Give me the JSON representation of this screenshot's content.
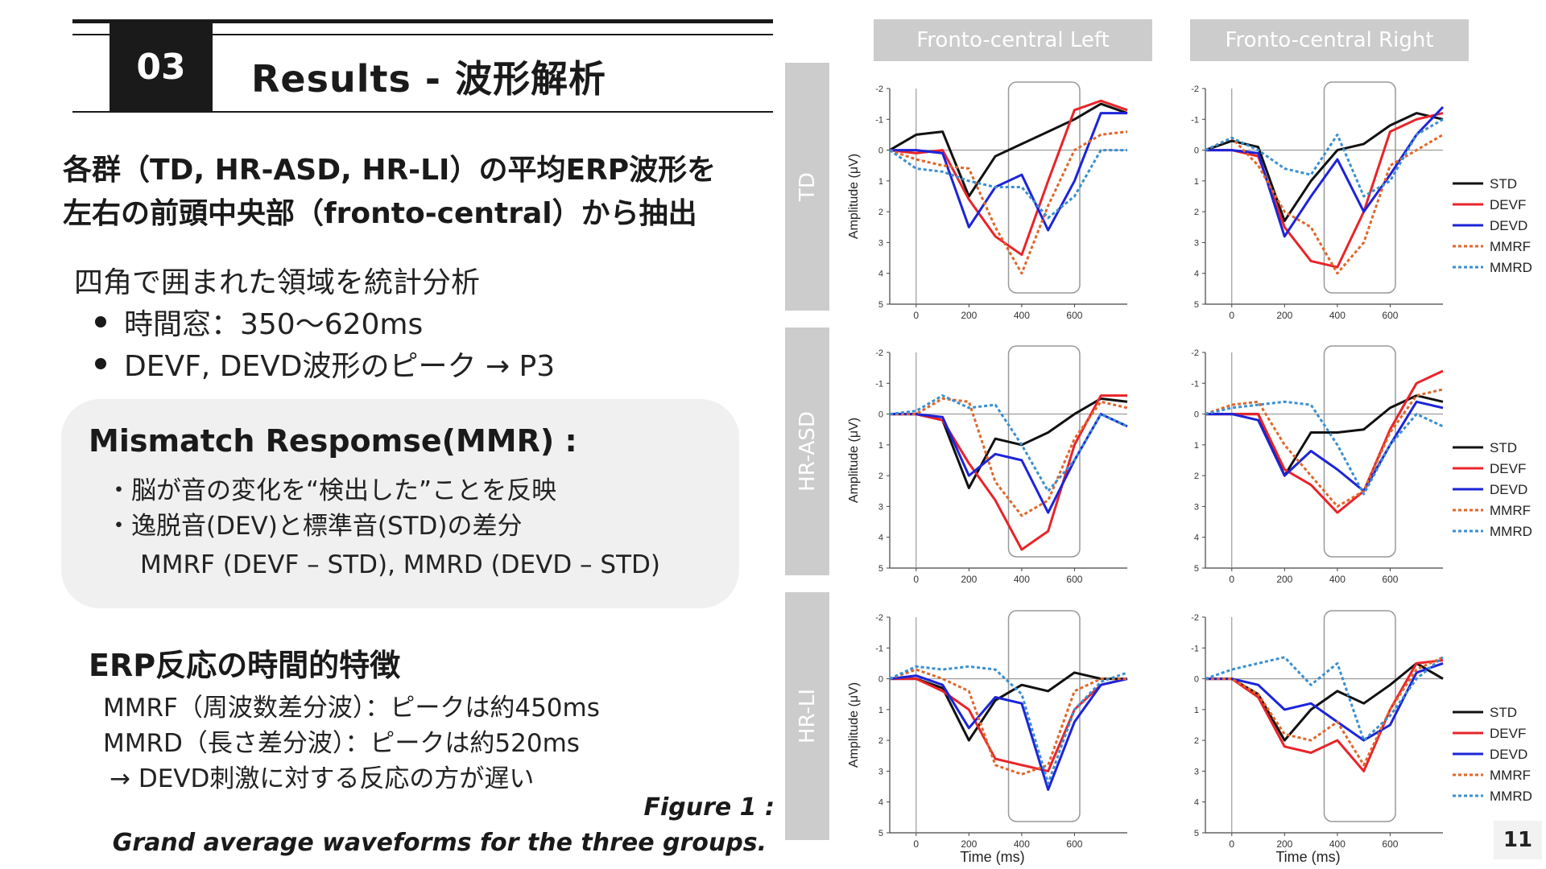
{
  "header": {
    "section_number": "03",
    "title": "Results - 波形解析"
  },
  "lead": [
    "各群（TD, HR-ASD, HR-LI）の平均ERP波形を",
    "左右の前頭中央部（fronto-central）から抽出"
  ],
  "analysis": {
    "intro": "四角で囲まれた領域を統計分析",
    "bullets": [
      "時間窓：350～620ms",
      "DEVF, DEVD波形のピーク → P3"
    ]
  },
  "mmr": {
    "title": "Mismatch Respomse(MMR) :",
    "lines": [
      "・脳が音の変化を“検出した”ことを反映",
      "・逸脱音(DEV)と標準音(STD)の差分"
    ],
    "formula": "MMRF (DEVF – STD), MMRD (DEVD – STD)"
  },
  "erp": {
    "title": "ERP反応の時間的特徴",
    "lines": [
      "MMRF（周波数差分波）：ピークは約450ms",
      "MMRD（長さ差分波）：ピークは約520ms",
      "→ DEVD刺激に対する反応の方が遅い"
    ]
  },
  "caption": {
    "line1": "Figure 1 :",
    "line2": "Grand average waveforms for the three groups."
  },
  "figure": {
    "columns": [
      "Fronto-central Left",
      "Fronto-central Right"
    ],
    "rows": [
      "TD",
      "HR-ASD",
      "HR-LI"
    ],
    "y_label": "Amplitude (μV)",
    "x_label": "Time (ms)",
    "y_ticks": [
      "-2",
      "-1",
      "0",
      "1",
      "2",
      "3",
      "4",
      "5"
    ],
    "x_ticks": [
      "0",
      "200",
      "400",
      "600"
    ],
    "legend": [
      "STD",
      "DEVF",
      "DEVD",
      "MMRF",
      "MMRD"
    ],
    "colors": {
      "STD": "#111111",
      "DEVF": "#e8242a",
      "DEVD": "#1c24d8",
      "MMRF": "#e0662a",
      "MMRD": "#3a8fd0"
    }
  },
  "chart_data": {
    "type": "line",
    "title": "Grand average waveforms for the three groups",
    "xlabel": "Time (ms)",
    "ylabel": "Amplitude (μV)",
    "xlim": [
      -100,
      800
    ],
    "ylim": [
      -2,
      5
    ],
    "y_inverted": true,
    "analysis_window_ms": [
      350,
      620
    ],
    "x": [
      -100,
      0,
      100,
      200,
      300,
      400,
      500,
      600,
      700,
      800
    ],
    "panels": [
      {
        "group": "TD",
        "side": "Fronto-central Left",
        "series": [
          {
            "name": "STD",
            "values": [
              0,
              -0.5,
              -0.6,
              1.5,
              0.2,
              -0.2,
              -0.6,
              -1.0,
              -1.5,
              -1.2
            ]
          },
          {
            "name": "DEVF",
            "values": [
              0,
              0.1,
              0.0,
              1.6,
              2.8,
              3.4,
              1.0,
              -1.3,
              -1.6,
              -1.3
            ]
          },
          {
            "name": "DEVD",
            "values": [
              0,
              0.0,
              0.1,
              2.5,
              1.2,
              0.8,
              2.6,
              1.0,
              -1.2,
              -1.2
            ]
          },
          {
            "name": "MMRF",
            "values": [
              0,
              0.3,
              0.5,
              0.6,
              2.5,
              4.0,
              1.8,
              0.0,
              -0.5,
              -0.6
            ]
          },
          {
            "name": "MMRD",
            "values": [
              0,
              0.6,
              0.7,
              1.0,
              1.2,
              1.2,
              2.2,
              1.5,
              0.0,
              0.0
            ]
          }
        ]
      },
      {
        "group": "TD",
        "side": "Fronto-central Right",
        "series": [
          {
            "name": "STD",
            "values": [
              0,
              -0.3,
              -0.1,
              2.3,
              1.0,
              0.0,
              -0.2,
              -0.8,
              -1.2,
              -1.0
            ]
          },
          {
            "name": "DEVF",
            "values": [
              0,
              0.0,
              0.2,
              2.5,
              3.6,
              3.8,
              2.0,
              -0.6,
              -1.0,
              -1.2
            ]
          },
          {
            "name": "DEVD",
            "values": [
              0,
              0.0,
              0.1,
              2.8,
              1.5,
              0.3,
              2.0,
              0.8,
              -0.5,
              -1.4
            ]
          },
          {
            "name": "MMRF",
            "values": [
              0,
              -0.4,
              0.5,
              2.0,
              2.5,
              4.0,
              3.0,
              0.5,
              0.0,
              -0.5
            ]
          },
          {
            "name": "MMRD",
            "values": [
              0,
              -0.4,
              0.0,
              0.6,
              0.8,
              -0.5,
              1.5,
              1.0,
              -0.5,
              -1.0
            ]
          }
        ]
      },
      {
        "group": "HR-ASD",
        "side": "Fronto-central Left",
        "series": [
          {
            "name": "STD",
            "values": [
              0,
              0.0,
              0.2,
              2.4,
              0.8,
              1.0,
              0.6,
              0.0,
              -0.5,
              -0.4
            ]
          },
          {
            "name": "DEVF",
            "values": [
              0,
              0.0,
              0.2,
              1.6,
              2.8,
              4.4,
              3.8,
              1.0,
              -0.6,
              -0.6
            ]
          },
          {
            "name": "DEVD",
            "values": [
              0,
              0.0,
              0.1,
              2.0,
              1.3,
              1.5,
              3.2,
              1.5,
              0.0,
              0.4
            ]
          },
          {
            "name": "MMRF",
            "values": [
              0,
              0.0,
              -0.5,
              -0.4,
              2.2,
              3.3,
              2.8,
              0.8,
              -0.4,
              -0.2
            ]
          },
          {
            "name": "MMRD",
            "values": [
              0,
              -0.1,
              -0.6,
              -0.2,
              -0.3,
              1.0,
              2.5,
              1.5,
              0.0,
              0.4
            ]
          }
        ]
      },
      {
        "group": "HR-ASD",
        "side": "Fronto-central Right",
        "series": [
          {
            "name": "STD",
            "values": [
              0,
              0.0,
              0.0,
              2.0,
              0.6,
              0.6,
              0.5,
              -0.2,
              -0.6,
              -0.4
            ]
          },
          {
            "name": "DEVF",
            "values": [
              0,
              0.0,
              0.0,
              1.8,
              2.3,
              3.2,
              2.5,
              0.5,
              -1.0,
              -1.4
            ]
          },
          {
            "name": "DEVD",
            "values": [
              0,
              0.0,
              0.2,
              2.0,
              1.2,
              1.8,
              2.5,
              1.0,
              -0.4,
              -0.2
            ]
          },
          {
            "name": "MMRF",
            "values": [
              0,
              -0.3,
              -0.4,
              1.0,
              2.0,
              3.0,
              2.5,
              0.6,
              -0.6,
              -0.8
            ]
          },
          {
            "name": "MMRD",
            "values": [
              0,
              -0.2,
              -0.3,
              -0.4,
              -0.3,
              1.0,
              2.6,
              1.0,
              0.0,
              0.4
            ]
          }
        ]
      },
      {
        "group": "HR-LI",
        "side": "Fronto-central Left",
        "series": [
          {
            "name": "STD",
            "values": [
              0,
              0.0,
              0.3,
              2.0,
              0.7,
              0.2,
              0.4,
              -0.2,
              0.0,
              0.0
            ]
          },
          {
            "name": "DEVF",
            "values": [
              0,
              0.0,
              0.4,
              1.0,
              2.6,
              2.8,
              3.0,
              1.0,
              0.2,
              0.0
            ]
          },
          {
            "name": "DEVD",
            "values": [
              0,
              -0.1,
              0.2,
              1.6,
              0.6,
              0.8,
              3.6,
              1.4,
              0.2,
              0.0
            ]
          },
          {
            "name": "MMRF",
            "values": [
              0,
              -0.3,
              0.0,
              0.4,
              2.8,
              3.1,
              2.8,
              0.4,
              0.0,
              0.0
            ]
          },
          {
            "name": "MMRD",
            "values": [
              0,
              -0.4,
              -0.3,
              -0.4,
              -0.3,
              0.5,
              3.4,
              1.0,
              0.1,
              -0.2
            ]
          }
        ]
      },
      {
        "group": "HR-LI",
        "side": "Fronto-central Right",
        "series": [
          {
            "name": "STD",
            "values": [
              0,
              0.0,
              0.5,
              2.0,
              1.0,
              0.4,
              0.8,
              0.2,
              -0.5,
              0.0
            ]
          },
          {
            "name": "DEVF",
            "values": [
              0,
              0.0,
              0.6,
              2.2,
              2.4,
              2.0,
              3.0,
              1.0,
              -0.5,
              -0.6
            ]
          },
          {
            "name": "DEVD",
            "values": [
              0,
              0.0,
              0.2,
              1.0,
              0.8,
              1.4,
              2.0,
              1.5,
              -0.2,
              -0.5
            ]
          },
          {
            "name": "MMRF",
            "values": [
              0,
              0.0,
              0.5,
              1.8,
              2.0,
              1.4,
              2.8,
              1.0,
              -0.3,
              -0.7
            ]
          },
          {
            "name": "MMRD",
            "values": [
              0,
              -0.3,
              -0.5,
              -0.7,
              0.2,
              -0.5,
              2.0,
              1.2,
              0.0,
              -0.7
            ]
          }
        ]
      }
    ]
  },
  "page_number": "11"
}
